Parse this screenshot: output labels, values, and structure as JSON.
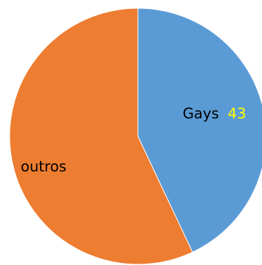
{
  "chart_data": {
    "type": "pie",
    "slices": [
      {
        "label": "Gays",
        "value": 43,
        "value_label": "43",
        "color": "#5b9bd5"
      },
      {
        "label": "outros",
        "value": 57,
        "color": "#ed7d31"
      }
    ],
    "legend": "none",
    "data_label_color": "#ffff00",
    "label_color": "#000000"
  }
}
